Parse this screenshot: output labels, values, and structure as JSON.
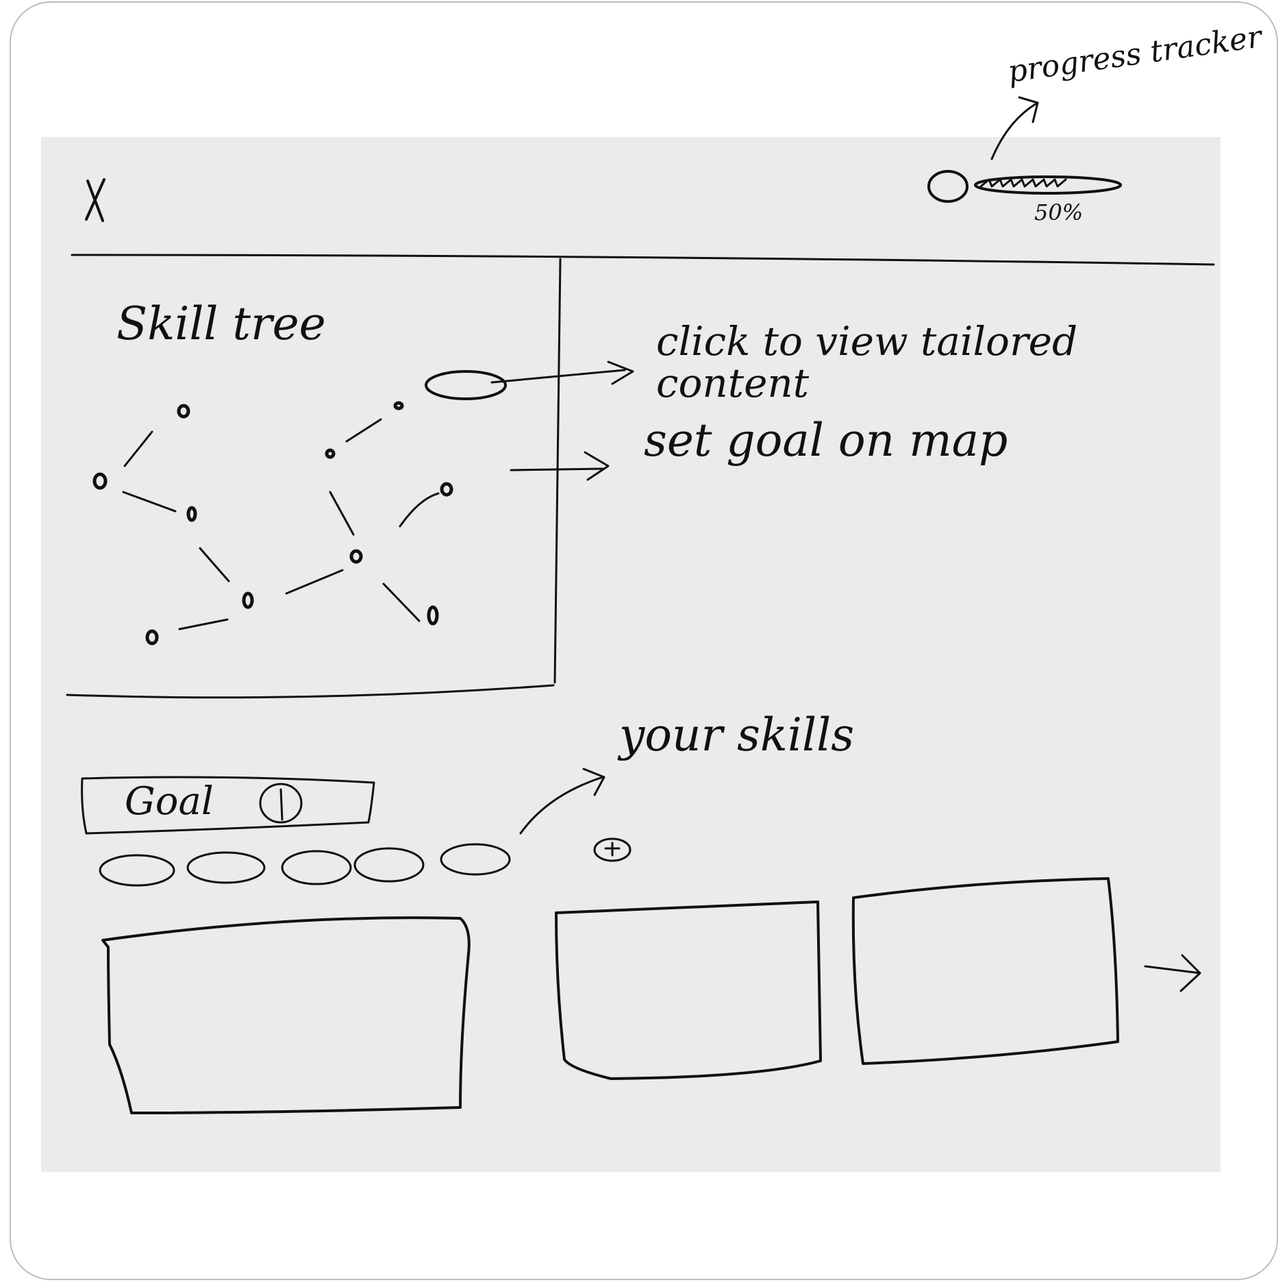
{
  "header": {
    "close_label": "X",
    "progress": {
      "annotation": "progress tracker",
      "percent_label": "50%",
      "value": 0.5
    }
  },
  "skill_tree": {
    "title": "Skill tree"
  },
  "annotations": {
    "click_tailored": "click to view tailored content",
    "set_goal": "set goal on map",
    "your_skills": "your skills"
  },
  "goal": {
    "label": "Goal",
    "info_icon": "info-icon"
  },
  "skills": {
    "add_icon": "plus-icon",
    "items": [
      "",
      "",
      "",
      "",
      ""
    ]
  },
  "cards": {
    "next_icon": "arrow-right-icon"
  },
  "colors": {
    "canvas": "#ebebeb",
    "ink": "#111111",
    "frame": "#bdbdbd"
  }
}
